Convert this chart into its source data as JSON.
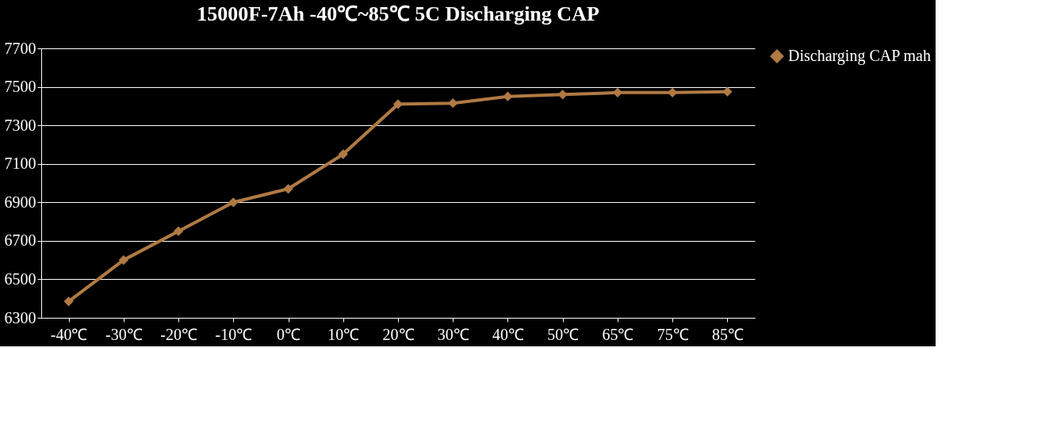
{
  "chart_data": {
    "type": "line",
    "title": "15000F-7Ah -40℃~85℃ 5C  Discharging CAP",
    "categories": [
      "-40℃",
      "-30℃",
      "-20℃",
      "-10℃",
      "0℃",
      "10℃",
      "20℃",
      "30℃",
      "40℃",
      "50℃",
      "65℃",
      "75℃",
      "85℃"
    ],
    "series": [
      {
        "name": "Discharging CAP mah",
        "color": "#b07a43",
        "values": [
          6385,
          6600,
          6750,
          6900,
          6970,
          7150,
          7410,
          7415,
          7450,
          7460,
          7470,
          7470,
          7475
        ]
      }
    ],
    "ylim": [
      6300,
      7700
    ],
    "yticks": [
      6300,
      6500,
      6700,
      6900,
      7100,
      7300,
      7500,
      7700
    ],
    "grid": "y",
    "legend": "right",
    "marker": "diamond",
    "line_style": "solid"
  }
}
